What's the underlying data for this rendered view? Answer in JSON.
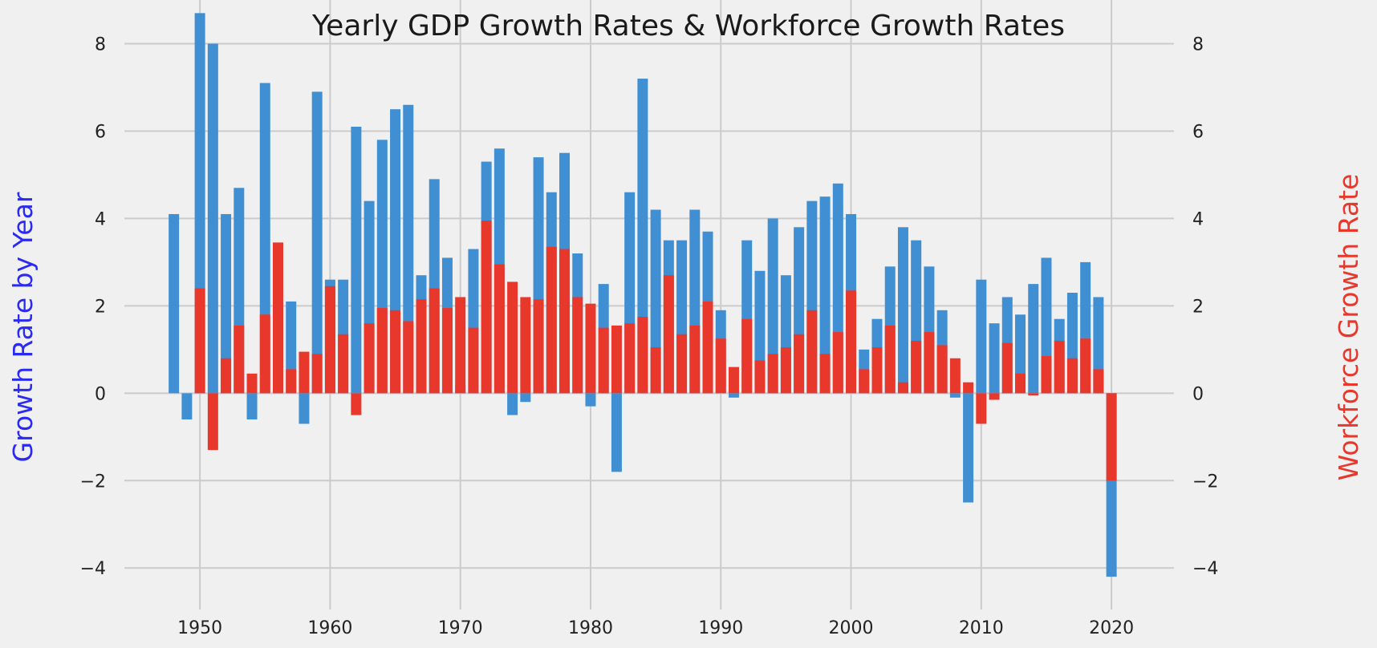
{
  "chart_data": {
    "type": "bar",
    "title": "Yearly GDP Growth Rates & Workforce Growth Rates",
    "xlabel": "",
    "ylabel": "Growth Rate by Year",
    "ylabel_right": "Workforce Growth Rate",
    "xlim": [
      1944.2,
      2024.8
    ],
    "ylim": [
      -4.95,
      9.0
    ],
    "x_ticks": [
      1950,
      1960,
      1970,
      1980,
      1990,
      2000,
      2010,
      2020
    ],
    "y_ticks": [
      -4,
      -2,
      0,
      2,
      4,
      6,
      8
    ],
    "grid": true,
    "legend": "none",
    "colors": {
      "gdp": "#3f8fd2",
      "workforce": "#e8382c",
      "left_label": "#2a2af0",
      "right_label": "#e8382c",
      "grid": "#cbcbcb",
      "background": "#f0f0f0"
    },
    "x": [
      1948,
      1949,
      1950,
      1951,
      1952,
      1953,
      1954,
      1955,
      1956,
      1957,
      1958,
      1959,
      1960,
      1961,
      1962,
      1963,
      1964,
      1965,
      1966,
      1967,
      1968,
      1969,
      1970,
      1971,
      1972,
      1973,
      1974,
      1975,
      1976,
      1977,
      1978,
      1979,
      1980,
      1981,
      1982,
      1983,
      1984,
      1985,
      1986,
      1987,
      1988,
      1989,
      1990,
      1991,
      1992,
      1993,
      1994,
      1995,
      1996,
      1997,
      1998,
      1999,
      2000,
      2001,
      2002,
      2003,
      2004,
      2005,
      2006,
      2007,
      2008,
      2009,
      2010,
      2011,
      2012,
      2013,
      2014,
      2015,
      2016,
      2017,
      2018,
      2019,
      2020
    ],
    "series": [
      {
        "key": "gdp",
        "values": [
          4.1,
          -0.6,
          8.7,
          8.0,
          4.1,
          4.7,
          -0.6,
          7.1,
          2.1,
          2.1,
          -0.7,
          6.9,
          2.6,
          2.6,
          6.1,
          4.4,
          5.8,
          6.5,
          6.6,
          2.7,
          4.9,
          3.1,
          0.2,
          3.3,
          5.3,
          5.6,
          -0.5,
          -0.2,
          5.4,
          4.6,
          5.5,
          3.2,
          -0.3,
          2.5,
          -1.8,
          4.6,
          7.2,
          4.2,
          3.5,
          3.5,
          4.2,
          3.7,
          1.9,
          -0.1,
          3.5,
          2.8,
          4.0,
          2.7,
          3.8,
          4.4,
          4.5,
          4.8,
          4.1,
          1.0,
          1.7,
          2.9,
          3.8,
          3.5,
          2.9,
          1.9,
          -0.1,
          -2.5,
          2.6,
          1.6,
          2.2,
          1.8,
          2.5,
          3.1,
          1.7,
          2.3,
          3.0,
          2.2,
          -4.2
        ]
      },
      {
        "key": "workforce",
        "values": [
          0,
          0,
          2.4,
          -1.3,
          0.8,
          1.55,
          0.45,
          1.8,
          3.45,
          0.55,
          0.95,
          0.9,
          2.45,
          1.35,
          -0.5,
          1.6,
          1.95,
          1.9,
          1.65,
          2.15,
          2.4,
          1.95,
          2.2,
          1.5,
          3.95,
          2.95,
          2.55,
          2.2,
          2.15,
          3.35,
          3.3,
          2.2,
          2.05,
          1.5,
          1.55,
          1.6,
          1.75,
          1.05,
          2.7,
          1.35,
          1.55,
          2.1,
          1.25,
          0.6,
          1.7,
          0.75,
          0.9,
          1.05,
          1.35,
          1.9,
          0.9,
          1.4,
          2.35,
          0.55,
          1.05,
          1.55,
          0.25,
          1.2,
          1.4,
          1.1,
          0.8,
          0.25,
          -0.7,
          -0.15,
          1.15,
          0.45,
          -0.05,
          0.85,
          1.2,
          0.8,
          1.25,
          0.55,
          -2.0
        ]
      }
    ]
  }
}
